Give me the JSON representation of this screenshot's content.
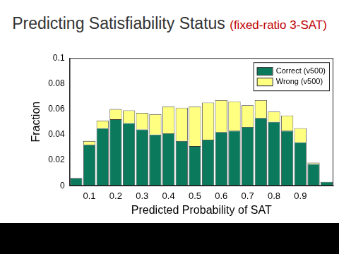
{
  "chart_data": {
    "type": "bar",
    "title": "Predicting Satisfiability Status",
    "subtitle": "(fixed-ratio 3-SAT)",
    "x_label": "Predicted Probability of SAT",
    "y_label": "Fraction",
    "categories": [
      null,
      "0.1",
      null,
      "0.2",
      null,
      "0.3",
      null,
      "0.4",
      null,
      "0.5",
      null,
      "0.6",
      null,
      "0.7",
      null,
      "0.8",
      null,
      "0.9",
      null,
      null
    ],
    "series": [
      {
        "name": "Correct (v500)",
        "color": "#0b7a5c",
        "values": [
          0.006,
          0.032,
          0.045,
          0.052,
          0.049,
          0.044,
          0.04,
          0.041,
          0.035,
          0.031,
          0.036,
          0.042,
          0.043,
          0.046,
          0.053,
          0.05,
          0.043,
          0.034,
          0.017,
          0.003
        ]
      },
      {
        "name": "Wrong (v500)",
        "color": "#ffff80",
        "values": [
          0,
          0.003,
          0.006,
          0.008,
          0.01,
          0.013,
          0.016,
          0.021,
          0.026,
          0.031,
          0.029,
          0.025,
          0.023,
          0.017,
          0.014,
          0.008,
          0.012,
          0.011,
          0.001,
          0
        ]
      }
    ],
    "stacked": true,
    "legend": "upper right",
    "grid": false,
    "ylim": [
      0,
      0.1
    ],
    "yticks": [
      0,
      0.02,
      0.04,
      0.06,
      0.08,
      0.1
    ]
  }
}
